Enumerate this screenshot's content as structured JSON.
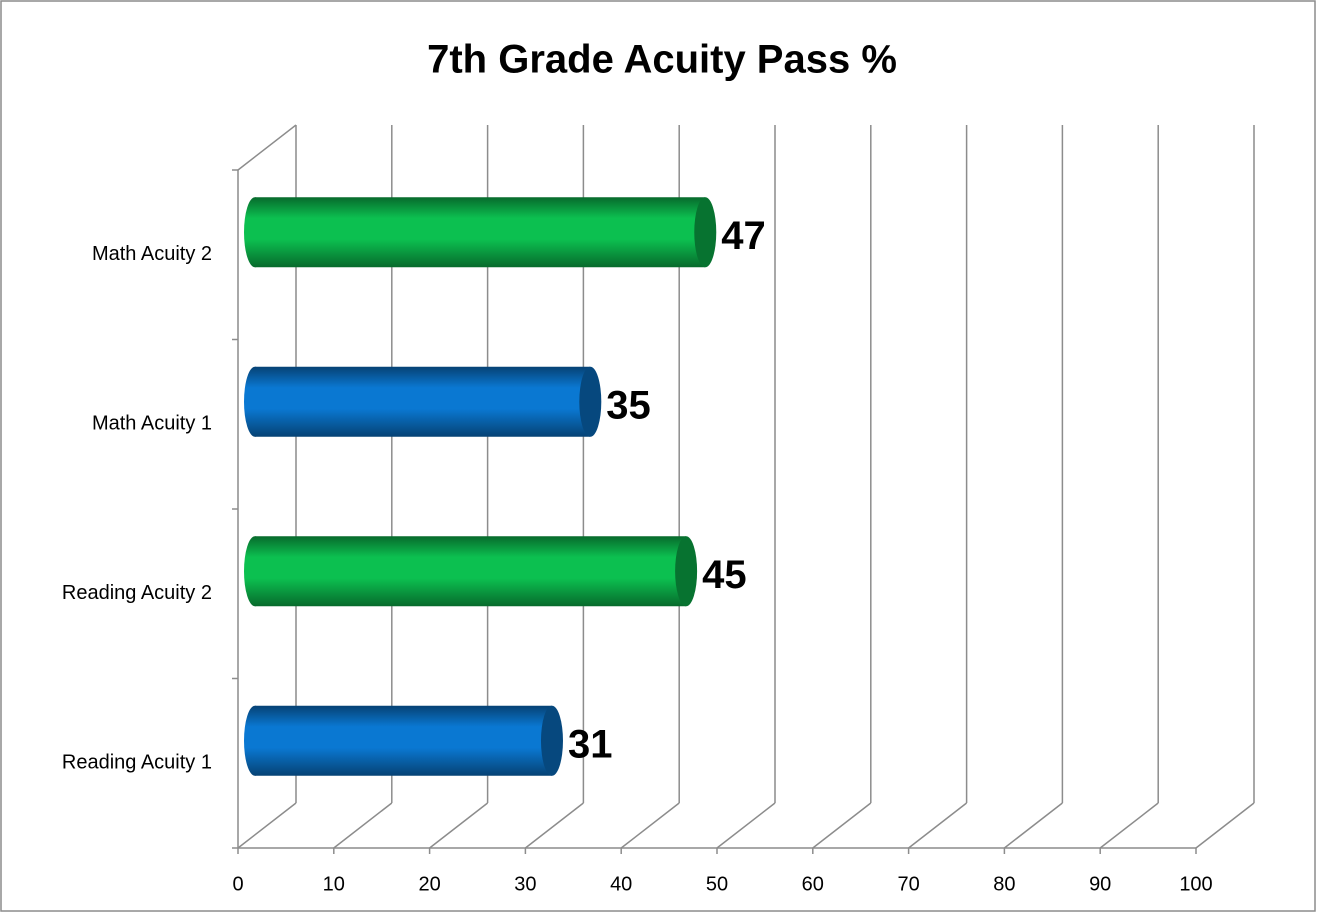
{
  "chart_data": {
    "type": "bar3d",
    "orientation": "horizontal",
    "title": "7th Grade Acuity Pass %",
    "categories": [
      "Reading Acuity 1",
      "Reading Acuity 2",
      "Math Acuity 1",
      "Math Acuity 2"
    ],
    "values": [
      31,
      45,
      35,
      47
    ],
    "colors": [
      "#0a78d2",
      "#0cc050",
      "#0a78d2",
      "#0cc050"
    ],
    "xlim": [
      0,
      100
    ],
    "xticks": [
      0,
      10,
      20,
      30,
      40,
      50,
      60,
      70,
      80,
      90,
      100
    ],
    "grid": true
  }
}
